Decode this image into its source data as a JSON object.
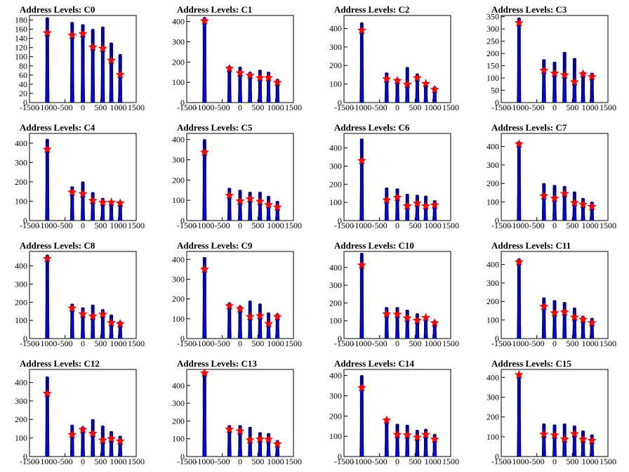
{
  "chart_data": [
    {
      "type": "histogram",
      "title": "Address Levels: C0",
      "x_ticks": [
        "-1500",
        "-1000",
        "-500",
        "0",
        "500",
        "1000",
        "1500"
      ],
      "xlim": [
        -1500,
        1500
      ],
      "ylim": [
        0,
        190
      ],
      "y_ticks": [
        "0",
        "20",
        "40",
        "60",
        "80",
        "100",
        "120",
        "140",
        "160",
        "180"
      ],
      "peaks": [
        -1000,
        -300,
        0,
        280,
        560,
        800,
        1050
      ],
      "values": [
        185,
        175,
        170,
        160,
        165,
        130,
        105
      ],
      "stars": [
        152,
        147,
        150,
        121,
        118,
        92,
        61
      ],
      "colors": {
        "histogram": "#000000",
        "fill": "#0000ff",
        "marker": "#ff0000"
      }
    },
    {
      "type": "histogram",
      "title": "Address Levels: C1",
      "x_ticks": [
        "-1500",
        "-1000",
        "-500",
        "0",
        "500",
        "1000",
        "1500"
      ],
      "xlim": [
        -1500,
        1500
      ],
      "ylim": [
        0,
        430
      ],
      "y_ticks": [
        "0",
        "100",
        "200",
        "300",
        "400"
      ],
      "peaks": [
        -1000,
        -300,
        0,
        280,
        560,
        800,
        1050
      ],
      "values": [
        420,
        180,
        175,
        150,
        160,
        150,
        115
      ],
      "stars": [
        403,
        168,
        146,
        134,
        122,
        122,
        99
      ],
      "colors": {
        "histogram": "#000000",
        "fill": "#0000ff",
        "marker": "#ff0000"
      }
    },
    {
      "type": "histogram",
      "title": "Address Levels: C2",
      "x_ticks": [
        "-1500",
        "-1000",
        "-500",
        "0",
        "500",
        "1000",
        "1500"
      ],
      "xlim": [
        -1500,
        1500
      ],
      "ylim": [
        0,
        470
      ],
      "y_ticks": [
        "0",
        "100",
        "200",
        "300",
        "400"
      ],
      "peaks": [
        -1000,
        -300,
        0,
        280,
        560,
        800,
        1050
      ],
      "values": [
        430,
        160,
        130,
        190,
        155,
        110,
        85
      ],
      "stars": [
        390,
        127,
        118,
        98,
        133,
        102,
        70
      ],
      "colors": {
        "histogram": "#000000",
        "fill": "#0000ff",
        "marker": "#ff0000"
      }
    },
    {
      "type": "histogram",
      "title": "Address Levels: C3",
      "x_ticks": [
        "-1500",
        "-1000",
        "-500",
        "0",
        "500",
        "1000",
        "1500"
      ],
      "xlim": [
        -1500,
        1500
      ],
      "ylim": [
        0,
        355
      ],
      "y_ticks": [
        "0",
        "50",
        "100",
        "150",
        "200",
        "250",
        "300",
        "350"
      ],
      "peaks": [
        -1000,
        -300,
        0,
        280,
        560,
        800,
        1050
      ],
      "values": [
        345,
        175,
        165,
        205,
        180,
        125,
        120
      ],
      "stars": [
        325,
        131,
        119,
        112,
        84,
        116,
        105
      ],
      "colors": {
        "histogram": "#000000",
        "fill": "#0000ff",
        "marker": "#ff0000"
      }
    },
    {
      "type": "histogram",
      "title": "Address Levels: C4",
      "x_ticks": [
        "-1500",
        "-1000",
        "-500",
        "0",
        "500",
        "1000",
        "1500"
      ],
      "xlim": [
        -1500,
        1500
      ],
      "ylim": [
        0,
        450
      ],
      "y_ticks": [
        "0",
        "100",
        "200",
        "300",
        "400"
      ],
      "peaks": [
        -1000,
        -300,
        0,
        280,
        560,
        800,
        1050
      ],
      "values": [
        420,
        175,
        200,
        145,
        115,
        100,
        100
      ],
      "stars": [
        368,
        146,
        138,
        103,
        94,
        94,
        90
      ],
      "colors": {
        "histogram": "#000000",
        "fill": "#0000ff",
        "marker": "#ff0000"
      }
    },
    {
      "type": "histogram",
      "title": "Address Levels: C5",
      "x_ticks": [
        "-1500",
        "-1000",
        "-500",
        "0",
        "500",
        "1000",
        "1500"
      ],
      "xlim": [
        -1500,
        1500
      ],
      "ylim": [
        0,
        430
      ],
      "y_ticks": [
        "0",
        "100",
        "200",
        "300",
        "400"
      ],
      "peaks": [
        -1000,
        -300,
        0,
        280,
        560,
        800,
        1050
      ],
      "values": [
        400,
        160,
        150,
        140,
        140,
        120,
        95
      ],
      "stars": [
        337,
        124,
        96,
        107,
        94,
        78,
        66
      ],
      "colors": {
        "histogram": "#000000",
        "fill": "#0000ff",
        "marker": "#ff0000"
      }
    },
    {
      "type": "histogram",
      "title": "Address Levels: C6",
      "x_ticks": [
        "-1500",
        "-1000",
        "-500",
        "0",
        "500",
        "1000",
        "1500"
      ],
      "xlim": [
        -1500,
        1500
      ],
      "ylim": [
        0,
        480
      ],
      "y_ticks": [
        "0",
        "100",
        "200",
        "300",
        "400"
      ],
      "peaks": [
        -1000,
        -300,
        0,
        280,
        560,
        800,
        1050
      ],
      "values": [
        450,
        180,
        175,
        145,
        140,
        135,
        110
      ],
      "stars": [
        330,
        113,
        127,
        80,
        95,
        80,
        85
      ],
      "colors": {
        "histogram": "#000000",
        "fill": "#0000ff",
        "marker": "#ff0000"
      }
    },
    {
      "type": "histogram",
      "title": "Address Levels: C7",
      "x_ticks": [
        "-1500",
        "-1000",
        "-500",
        "0",
        "500",
        "1000",
        "1500"
      ],
      "xlim": [
        -1500,
        1500
      ],
      "ylim": [
        0,
        470
      ],
      "y_ticks": [
        "0",
        "100",
        "200",
        "300",
        "400"
      ],
      "peaks": [
        -1000,
        -300,
        0,
        280,
        560,
        800,
        1050
      ],
      "values": [
        425,
        200,
        190,
        185,
        155,
        120,
        100
      ],
      "stars": [
        413,
        133,
        120,
        145,
        96,
        87,
        75
      ],
      "colors": {
        "histogram": "#000000",
        "fill": "#0000ff",
        "marker": "#ff0000"
      }
    },
    {
      "type": "histogram",
      "title": "Address Levels: C8",
      "x_ticks": [
        "-1500",
        "-1000",
        "-500",
        "0",
        "500",
        "1000",
        "1500"
      ],
      "xlim": [
        -1500,
        1500
      ],
      "ylim": [
        0,
        480
      ],
      "y_ticks": [
        "0",
        "100",
        "200",
        "300",
        "400"
      ],
      "peaks": [
        -1000,
        -300,
        0,
        280,
        560,
        800,
        1050
      ],
      "values": [
        460,
        190,
        170,
        185,
        160,
        130,
        95
      ],
      "stars": [
        440,
        167,
        135,
        123,
        133,
        87,
        81
      ],
      "colors": {
        "histogram": "#000000",
        "fill": "#0000ff",
        "marker": "#ff0000"
      }
    },
    {
      "type": "histogram",
      "title": "Address Levels: C9",
      "x_ticks": [
        "-1500",
        "-1000",
        "-500",
        "0",
        "500",
        "1000",
        "1500"
      ],
      "xlim": [
        -1500,
        1500
      ],
      "ylim": [
        0,
        440
      ],
      "y_ticks": [
        "0",
        "100",
        "200",
        "300",
        "400"
      ],
      "peaks": [
        -1000,
        -300,
        0,
        280,
        560,
        800,
        1050
      ],
      "values": [
        410,
        180,
        165,
        190,
        175,
        130,
        125
      ],
      "stars": [
        350,
        165,
        150,
        110,
        115,
        75,
        110
      ],
      "colors": {
        "histogram": "#000000",
        "fill": "#0000ff",
        "marker": "#ff0000"
      }
    },
    {
      "type": "histogram",
      "title": "Address Levels: C10",
      "x_ticks": [
        "-1500",
        "-1000",
        "-500",
        "0",
        "500",
        "1000",
        "1500"
      ],
      "xlim": [
        -1500,
        1500
      ],
      "ylim": [
        0,
        490
      ],
      "y_ticks": [
        "0",
        "100",
        "200",
        "300",
        "400"
      ],
      "peaks": [
        -1000,
        -300,
        0,
        280,
        560,
        800,
        1050
      ],
      "values": [
        480,
        175,
        175,
        160,
        140,
        125,
        100
      ],
      "stars": [
        413,
        138,
        136,
        115,
        102,
        118,
        88
      ],
      "colors": {
        "histogram": "#000000",
        "fill": "#0000ff",
        "marker": "#ff0000"
      }
    },
    {
      "type": "histogram",
      "title": "Address Levels: C11",
      "x_ticks": [
        "-1500",
        "-1000",
        "-500",
        "0",
        "500",
        "1000",
        "1500"
      ],
      "xlim": [
        -1500,
        1500
      ],
      "ylim": [
        0,
        470
      ],
      "y_ticks": [
        "0",
        "100",
        "200",
        "300",
        "400"
      ],
      "peaks": [
        -1000,
        -300,
        0,
        280,
        560,
        800,
        1050
      ],
      "values": [
        430,
        220,
        205,
        195,
        165,
        120,
        110
      ],
      "stars": [
        413,
        173,
        138,
        143,
        115,
        103,
        85
      ],
      "colors": {
        "histogram": "#000000",
        "fill": "#0000ff",
        "marker": "#ff0000"
      }
    },
    {
      "type": "histogram",
      "title": "Address Levels: C12",
      "x_ticks": [
        "-1500",
        "-1000",
        "-500",
        "0",
        "500",
        "1000",
        "1500"
      ],
      "xlim": [
        -1500,
        1500
      ],
      "ylim": [
        0,
        470
      ],
      "y_ticks": [
        "0",
        "100",
        "200",
        "300",
        "400"
      ],
      "peaks": [
        -1000,
        -300,
        0,
        280,
        560,
        800,
        1050
      ],
      "values": [
        430,
        170,
        160,
        200,
        165,
        135,
        110
      ],
      "stars": [
        340,
        118,
        145,
        124,
        88,
        96,
        83
      ],
      "colors": {
        "histogram": "#000000",
        "fill": "#0000ff",
        "marker": "#ff0000"
      }
    },
    {
      "type": "histogram",
      "title": "Address Levels: C13",
      "x_ticks": [
        "-1500",
        "-1000",
        "-500",
        "0",
        "500",
        "1000",
        "1500"
      ],
      "xlim": [
        -1500,
        1500
      ],
      "ylim": [
        0,
        490
      ],
      "y_ticks": [
        "0",
        "100",
        "200",
        "300",
        "400"
      ],
      "peaks": [
        -1000,
        -300,
        0,
        280,
        560,
        800,
        1050
      ],
      "values": [
        470,
        175,
        175,
        165,
        135,
        130,
        90
      ],
      "stars": [
        470,
        153,
        143,
        93,
        98,
        96,
        70
      ],
      "colors": {
        "histogram": "#000000",
        "fill": "#0000ff",
        "marker": "#ff0000"
      }
    },
    {
      "type": "histogram",
      "title": "Address Levels: C14",
      "x_ticks": [
        "-1500",
        "-1000",
        "-500",
        "0",
        "500",
        "1000",
        "1500"
      ],
      "xlim": [
        -1500,
        1500
      ],
      "ylim": [
        0,
        430
      ],
      "y_ticks": [
        "0",
        "100",
        "200",
        "300",
        "400"
      ],
      "peaks": [
        -1000,
        -300,
        0,
        280,
        560,
        800,
        1050
      ],
      "values": [
        400,
        190,
        160,
        155,
        130,
        135,
        110
      ],
      "stars": [
        340,
        180,
        108,
        106,
        95,
        108,
        85
      ],
      "colors": {
        "histogram": "#000000",
        "fill": "#0000ff",
        "marker": "#ff0000"
      }
    },
    {
      "type": "histogram",
      "title": "Address Levels: C15",
      "x_ticks": [
        "-1500",
        "-1000",
        "-500",
        "0",
        "500",
        "1000",
        "1500"
      ],
      "xlim": [
        -1500,
        1500
      ],
      "ylim": [
        0,
        440
      ],
      "y_ticks": [
        "0",
        "100",
        "200",
        "300",
        "400"
      ],
      "peaks": [
        -1000,
        -300,
        0,
        280,
        560,
        800,
        1050
      ],
      "values": [
        410,
        165,
        160,
        165,
        155,
        130,
        110
      ],
      "stars": [
        413,
        113,
        108,
        88,
        115,
        87,
        81
      ],
      "colors": {
        "histogram": "#000000",
        "fill": "#0000ff",
        "marker": "#ff0000"
      }
    }
  ]
}
